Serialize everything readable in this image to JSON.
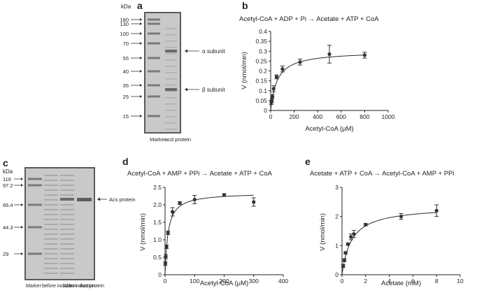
{
  "panels": {
    "a": {
      "letter": "a",
      "kda_label": "kDa",
      "markers": [
        "180",
        "130",
        "100",
        "70",
        "55",
        "40",
        "35",
        "25",
        "15"
      ],
      "arrows": [
        {
          "label": "α  subunit"
        },
        {
          "label": "β  subunit"
        }
      ],
      "lane_labels": [
        "Marker",
        "acd protein"
      ]
    },
    "c": {
      "letter": "c",
      "kda_label": "kDa",
      "markers": [
        "116",
        "97.2",
        "66.4",
        "44.3",
        "29"
      ],
      "arrows": [
        {
          "label": "Acs protein"
        }
      ],
      "lane_labels": [
        "Marker",
        "before induction",
        "After induction",
        "Acs protein"
      ]
    }
  },
  "colors": {
    "gel_background": "#c9c9c9",
    "gel_border": "#5a5a5a",
    "band": "#7a7a7a",
    "curve": "#2b2b2b",
    "point": "#333333"
  },
  "chart_data": [
    {
      "panel": "b",
      "type": "scatter",
      "title": "Acetyl-CoA + ADP + Pi → Acetate + ATP + CoA",
      "xlabel": "Acetyl-CoA (μM)",
      "ylabel": "V (nmol/min)",
      "xlim": [
        0,
        1000
      ],
      "ylim": [
        0,
        0.4
      ],
      "xticks": [
        "0",
        "200",
        "400",
        "600",
        "800",
        "1000"
      ],
      "yticks": [
        "0",
        "0.05",
        "0.1",
        "0.15",
        "0.2",
        "0.25",
        "0.3",
        "0.35",
        "0.4"
      ],
      "points": {
        "x": [
          5,
          10,
          15,
          25,
          50,
          100,
          250,
          500,
          800
        ],
        "y": [
          0.04,
          0.05,
          0.07,
          0.11,
          0.17,
          0.21,
          0.245,
          0.285,
          0.28
        ],
        "err": [
          0.01,
          0.01,
          0.01,
          0.015,
          0.01,
          0.015,
          0.015,
          0.045,
          0.015
        ]
      },
      "fit": {
        "model": "michaelis-menten",
        "vmax": 0.3,
        "km": 55
      }
    },
    {
      "panel": "d",
      "type": "scatter",
      "title": "Acetyl-CoA + AMP + PPi → Acetate + ATP + CoA",
      "xlabel": "Acetyl-CoA (μM)",
      "ylabel": "V (nmol/min)",
      "xlim": [
        0,
        400
      ],
      "ylim": [
        0,
        2.5
      ],
      "xticks": [
        "0",
        "100",
        "200",
        "300",
        "400"
      ],
      "yticks": [
        "0",
        "0.5",
        "1.0",
        "1.5",
        "2.0",
        "2.5"
      ],
      "points": {
        "x": [
          1,
          2.5,
          5,
          10,
          25,
          50,
          100,
          200,
          300
        ],
        "y": [
          0.32,
          0.52,
          0.8,
          1.2,
          1.8,
          2.05,
          2.15,
          2.28,
          2.08
        ],
        "err": [
          0.05,
          0.06,
          0.05,
          0.05,
          0.12,
          0.04,
          0.12,
          0.04,
          0.12
        ]
      },
      "fit": {
        "model": "michaelis-menten",
        "vmax": 2.35,
        "km": 10
      }
    },
    {
      "panel": "e",
      "type": "scatter",
      "title": "Acetate + ATP + CoA → Acetyl-CoA + AMP + PPi",
      "xlabel": "Acetate (mM)",
      "ylabel": "V (nmol/min)",
      "xlim": [
        0,
        10
      ],
      "ylim": [
        0,
        3
      ],
      "xticks": [
        "0",
        "2",
        "4",
        "6",
        "8",
        "10"
      ],
      "yticks": [
        "0",
        "1",
        "2",
        "3"
      ],
      "points": {
        "x": [
          0.1,
          0.2,
          0.3,
          0.5,
          0.75,
          1.0,
          2.0,
          5.0,
          8.0
        ],
        "y": [
          0.3,
          0.5,
          0.75,
          1.05,
          1.3,
          1.4,
          1.72,
          2.0,
          2.2
        ],
        "err": [
          0.05,
          0.05,
          0.04,
          0.04,
          0.1,
          0.12,
          0.04,
          0.1,
          0.2
        ]
      },
      "fit": {
        "model": "michaelis-menten",
        "vmax": 2.35,
        "km": 0.8
      }
    }
  ]
}
